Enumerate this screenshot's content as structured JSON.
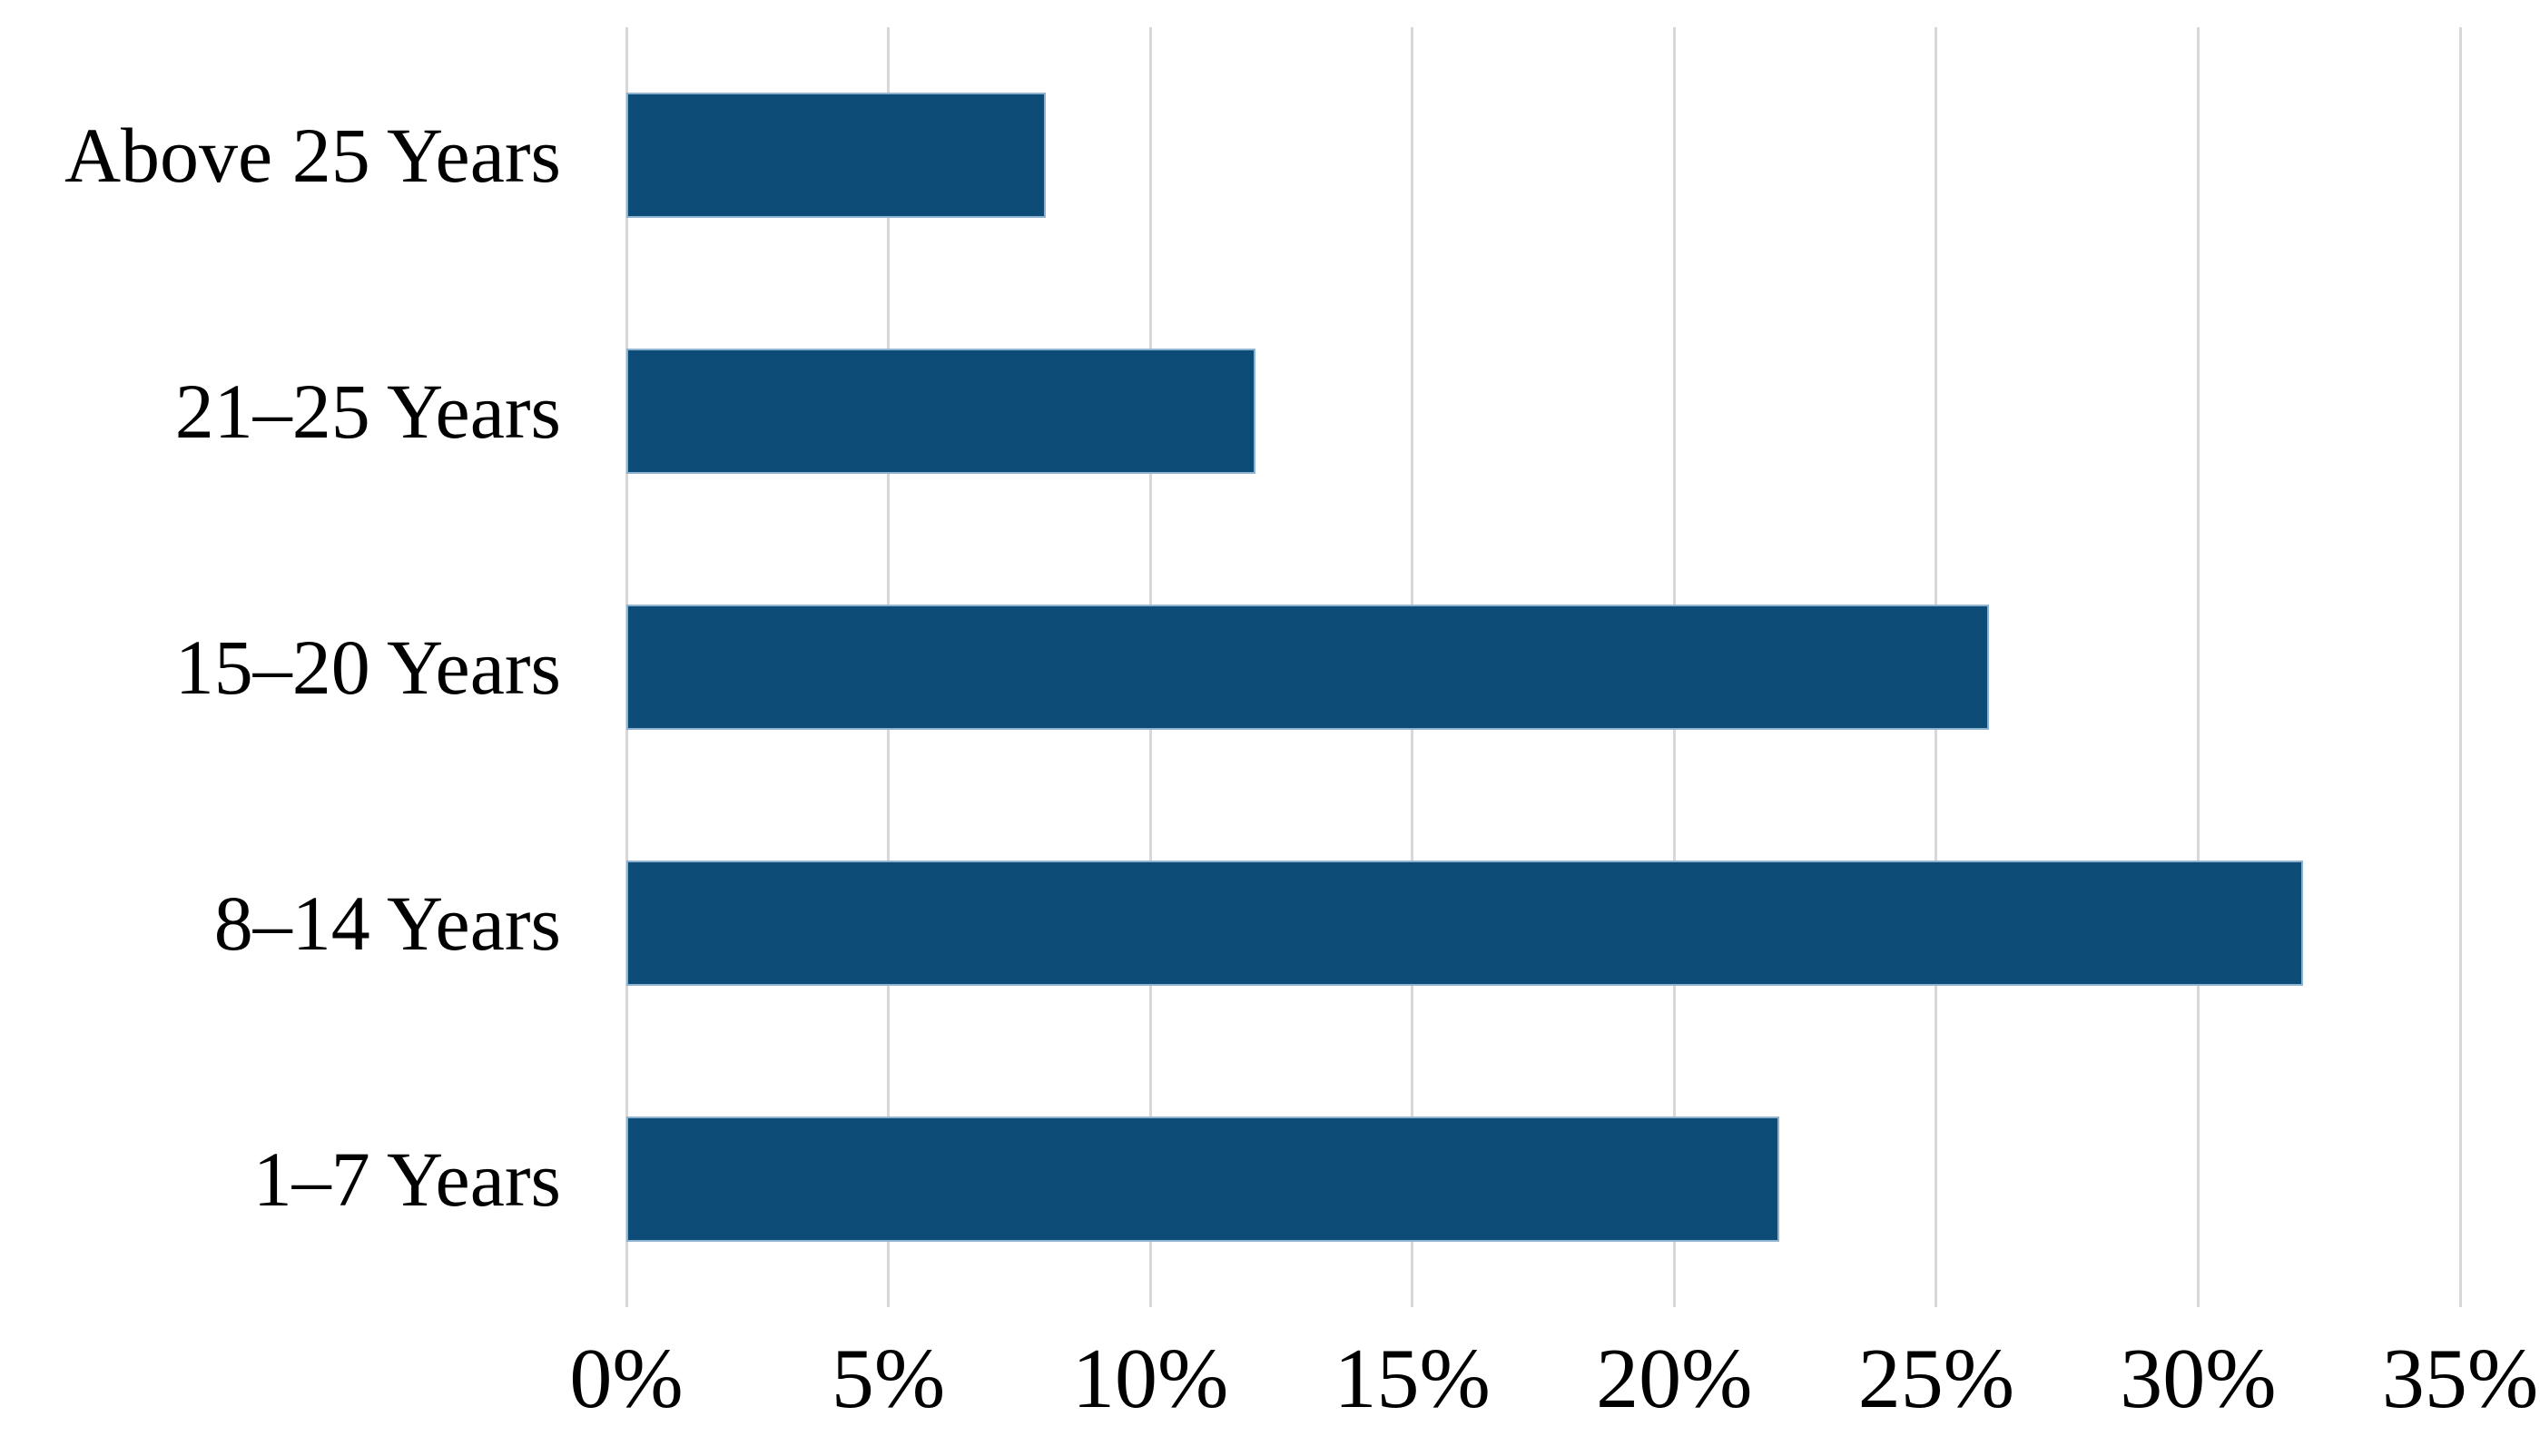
{
  "chart_data": {
    "type": "bar",
    "orientation": "horizontal",
    "title": "",
    "xlabel": "",
    "ylabel": "",
    "categories": [
      "Above 25 Years",
      "21–25 Years",
      "15–20 Years",
      "8–14 Years",
      "1–7 Years"
    ],
    "values": [
      8,
      12,
      26,
      32,
      22
    ],
    "value_unit": "%",
    "xlim": [
      0,
      35
    ],
    "xticks": [
      {
        "value": 0,
        "label": "0%"
      },
      {
        "value": 5,
        "label": "5%"
      },
      {
        "value": 10,
        "label": "10%"
      },
      {
        "value": 15,
        "label": "15%"
      },
      {
        "value": 20,
        "label": "20%"
      },
      {
        "value": 25,
        "label": "25%"
      },
      {
        "value": 30,
        "label": "30%"
      },
      {
        "value": 35,
        "label": "35%"
      }
    ],
    "grid": "vertical gridlines at every tick",
    "legend": "none",
    "colors": {
      "bar_fill": "#0E4C78",
      "bar_edge": "#8FB3CF",
      "gridline": "#D8D8D8",
      "label_text": "#000000",
      "background": "#FFFFFF"
    }
  }
}
